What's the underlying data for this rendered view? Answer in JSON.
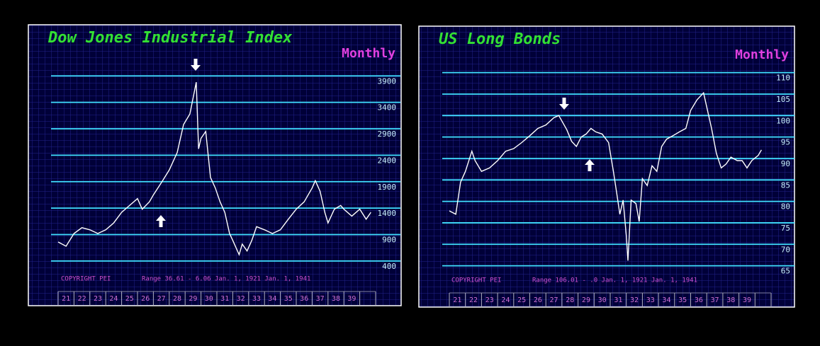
{
  "chart_data": [
    {
      "type": "line",
      "title": "Dow Jones Industrial Index",
      "subtitle": "Monthly",
      "annotations": [
        "COPYRIGHT PEI",
        "Range  36.61 - 6.06  Jan.  1, 1921 Jan.  1, 1941"
      ],
      "color": "#ffffff",
      "grid": true,
      "x": [
        21,
        21.5,
        22,
        22.5,
        23,
        23.5,
        24,
        24.5,
        25,
        25.5,
        26,
        26.3,
        26.75,
        27,
        27.5,
        28,
        28.5,
        28.9,
        29.3,
        29.7,
        29.85,
        30,
        30.3,
        30.6,
        30.9,
        31.2,
        31.5,
        31.8,
        32,
        32.4,
        32.6,
        32.9,
        33.2,
        33.5,
        34,
        34.5,
        35,
        35.5,
        36,
        36.5,
        37,
        37.2,
        37.5,
        37.8,
        38,
        38.4,
        38.8,
        39,
        39.5,
        40,
        40.4,
        40.7
      ],
      "values": [
        760,
        680,
        920,
        1030,
        990,
        920,
        990,
        1120,
        1320,
        1450,
        1580,
        1380,
        1520,
        1650,
        1880,
        2120,
        2450,
        2980,
        3180,
        3780,
        2520,
        2720,
        2850,
        1980,
        1780,
        1520,
        1320,
        920,
        790,
        520,
        720,
        590,
        790,
        1050,
        990,
        920,
        990,
        1190,
        1380,
        1520,
        1780,
        1920,
        1720,
        1320,
        1120,
        1380,
        1450,
        1380,
        1250,
        1380,
        1190,
        1320
      ],
      "xlim": [
        21,
        41
      ],
      "xticks": [
        {
          "value": 21,
          "label": "21"
        },
        {
          "value": 22,
          "label": "22"
        },
        {
          "value": 23,
          "label": "23"
        },
        {
          "value": 24,
          "label": "24"
        },
        {
          "value": 25,
          "label": "25"
        },
        {
          "value": 26,
          "label": "26"
        },
        {
          "value": 27,
          "label": "27"
        },
        {
          "value": 28,
          "label": "28"
        },
        {
          "value": 29,
          "label": "29"
        },
        {
          "value": 30,
          "label": "30"
        },
        {
          "value": 31,
          "label": "31"
        },
        {
          "value": 32,
          "label": "32"
        },
        {
          "value": 33,
          "label": "33"
        },
        {
          "value": 34,
          "label": "34"
        },
        {
          "value": 35,
          "label": "35"
        },
        {
          "value": 36,
          "label": "36"
        },
        {
          "value": 37,
          "label": "37"
        },
        {
          "value": 38,
          "label": "38"
        },
        {
          "value": 39,
          "label": "39"
        }
      ],
      "ylim": [
        -150,
        4800
      ],
      "yticks": [
        400,
        900,
        1400,
        1900,
        2400,
        2900,
        3400,
        3900
      ]
    },
    {
      "type": "line",
      "title": "US Long Bonds",
      "subtitle": "Monthly",
      "annotations": [
        "COPYRIGHT PEI",
        "Range   106.01 - .0  Jan.  1, 1921 Jan.  1, 1941"
      ],
      "color": "#ffffff",
      "grid": true,
      "x": [
        21,
        21.4,
        21.7,
        22,
        22.4,
        22.6,
        23,
        23.5,
        24,
        24.5,
        25,
        25.5,
        26,
        26.5,
        27,
        27.5,
        27.8,
        28,
        28.3,
        28.6,
        28.9,
        29.2,
        29.5,
        29.8,
        30.1,
        30.5,
        30.9,
        31.2,
        31.4,
        31.6,
        31.8,
        32,
        32.1,
        32.3,
        32.6,
        32.8,
        33,
        33.3,
        33.6,
        33.9,
        34.2,
        34.5,
        34.9,
        35.3,
        35.7,
        36,
        36.4,
        36.8,
        37,
        37.3,
        37.6,
        37.9,
        38.2,
        38.5,
        38.9,
        39.2,
        39.5,
        39.8,
        40.2,
        40.4
      ],
      "values": [
        77.8,
        77,
        84.5,
        87,
        91.7,
        89.5,
        87,
        87.8,
        89.5,
        91.7,
        92.3,
        93.7,
        95.3,
        97,
        97.8,
        99.5,
        100,
        98.7,
        96.7,
        94,
        92.8,
        95,
        95.7,
        97,
        96.2,
        95.7,
        93.7,
        87,
        82,
        77,
        80.3,
        72,
        66.2,
        80.3,
        79.5,
        75.3,
        85.3,
        83.7,
        88.3,
        87,
        92.8,
        94.5,
        95.3,
        96.2,
        97,
        101.2,
        103.7,
        105.3,
        102,
        97,
        91.2,
        87.8,
        88.7,
        90.3,
        89.5,
        89.5,
        87.8,
        89.5,
        90.7,
        92
      ],
      "xlim": [
        21,
        41
      ],
      "xticks": [
        {
          "value": 21,
          "label": "21"
        },
        {
          "value": 22,
          "label": "22"
        },
        {
          "value": 23,
          "label": "23"
        },
        {
          "value": 24,
          "label": "24"
        },
        {
          "value": 25,
          "label": "25"
        },
        {
          "value": 26,
          "label": "26"
        },
        {
          "value": 27,
          "label": "27"
        },
        {
          "value": 28,
          "label": "28"
        },
        {
          "value": 29,
          "label": "29"
        },
        {
          "value": 30,
          "label": "30"
        },
        {
          "value": 31,
          "label": "31"
        },
        {
          "value": 32,
          "label": "32"
        },
        {
          "value": 33,
          "label": "33"
        },
        {
          "value": 34,
          "label": "34"
        },
        {
          "value": 35,
          "label": "35"
        },
        {
          "value": 36,
          "label": "36"
        },
        {
          "value": 37,
          "label": "37"
        },
        {
          "value": 38,
          "label": "38"
        },
        {
          "value": 39,
          "label": "39"
        }
      ],
      "ylim": [
        59,
        120
      ],
      "yticks": [
        65,
        70,
        75,
        80,
        85,
        90,
        95,
        100,
        105,
        110
      ]
    }
  ]
}
